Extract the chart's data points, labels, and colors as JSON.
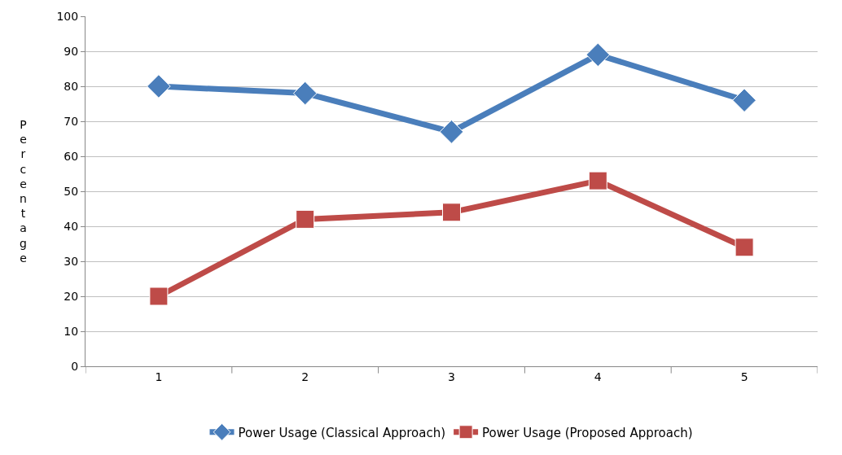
{
  "chart_data": {
    "type": "line",
    "ylabel": "Percentage",
    "categories": [
      "1",
      "2",
      "3",
      "4",
      "5"
    ],
    "series": [
      {
        "name": "Power Usage (Classical Approach)",
        "color": "#4a7ebb",
        "marker": "diamond",
        "values": [
          80,
          78,
          67,
          89,
          76
        ]
      },
      {
        "name": "Power Usage (Proposed Approach)",
        "color": "#be4b48",
        "marker": "square",
        "values": [
          20,
          42,
          44,
          53,
          34
        ]
      }
    ],
    "ylim": [
      0,
      100
    ],
    "yticks": [
      0,
      10,
      20,
      30,
      40,
      50,
      60,
      70,
      80,
      90,
      100
    ],
    "grid": "y",
    "legend": "bottom"
  }
}
